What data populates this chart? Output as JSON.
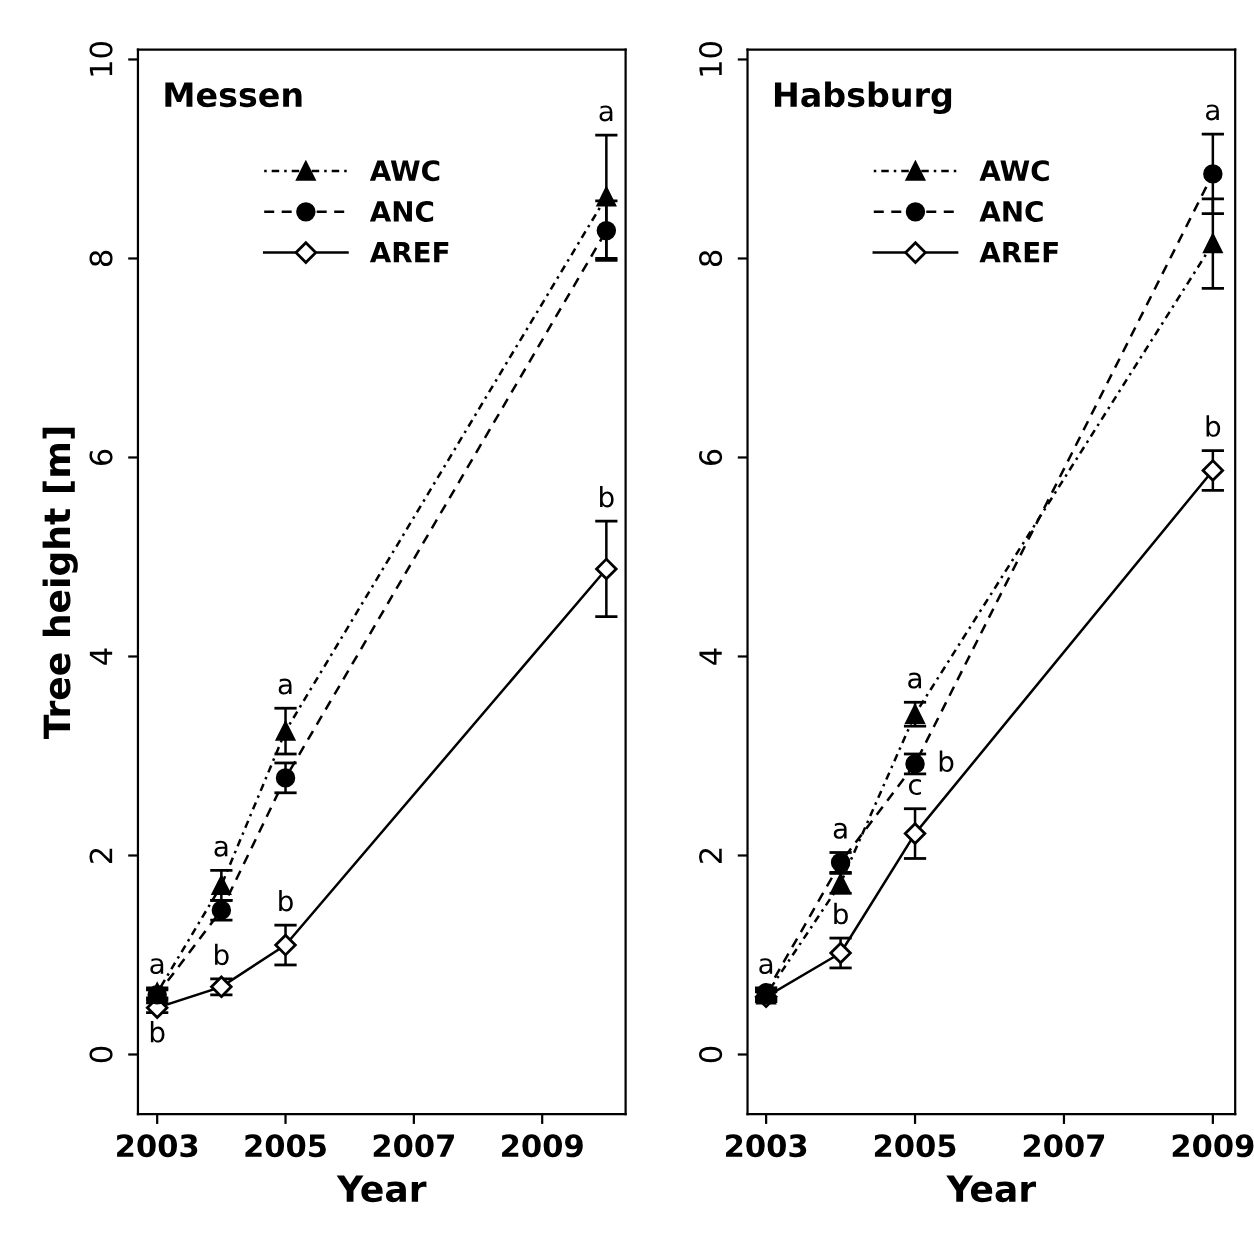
{
  "chart_data": [
    {
      "type": "line",
      "title": "Messen",
      "xlabel": "Year",
      "ylabel": "Tree height [m]",
      "x": [
        2003,
        2004,
        2005,
        2010
      ],
      "xlim": [
        2002.7,
        2010.3
      ],
      "xticks": [
        2003,
        2005,
        2007,
        2009
      ],
      "ylim": [
        -0.6,
        10.1
      ],
      "yticks": [
        0,
        2,
        4,
        6,
        8,
        10
      ],
      "legend": "top",
      "grid": false,
      "series": [
        {
          "name": "AWC",
          "color": "#000000",
          "marker": "triangle",
          "line_style": "dashdot",
          "values": [
            0.62,
            1.7,
            3.25,
            8.62
          ],
          "errors": [
            0.05,
            0.15,
            0.23,
            0.62
          ]
        },
        {
          "name": "ANC",
          "color": "#000000",
          "marker": "circle",
          "line_style": "dashed",
          "values": [
            0.6,
            1.45,
            2.78,
            8.28
          ],
          "errors": [
            0.05,
            0.1,
            0.15,
            0.3
          ]
        },
        {
          "name": "AREF",
          "color": "#000000",
          "marker": "diamond",
          "line_style": "solid",
          "values": [
            0.47,
            0.68,
            1.1,
            4.88
          ],
          "errors": [
            0.05,
            0.08,
            0.2,
            0.48
          ]
        }
      ],
      "annotations": [
        {
          "text": "a",
          "x": 2003,
          "y": 0.62
        },
        {
          "text": "b",
          "x": 2003,
          "y": 0.47
        },
        {
          "text": "a",
          "x": 2004,
          "y": 1.7
        },
        {
          "text": "b",
          "x": 2004,
          "y": 0.68
        },
        {
          "text": "a",
          "x": 2005,
          "y": 3.25
        },
        {
          "text": "b",
          "x": 2005,
          "y": 1.1
        },
        {
          "text": "a",
          "x": 2010,
          "y": 8.62
        },
        {
          "text": "b",
          "x": 2010,
          "y": 4.88
        }
      ]
    },
    {
      "type": "line",
      "title": "Habsburg",
      "xlabel": "Year",
      "x": [
        2003,
        2004,
        2005,
        2009
      ],
      "xlim": [
        2002.75,
        2009.3
      ],
      "xticks": [
        2003,
        2005,
        2007,
        2009
      ],
      "ylim": [
        -0.6,
        10.1
      ],
      "yticks": [
        0,
        2,
        4,
        6,
        8,
        10
      ],
      "legend": "top",
      "grid": false,
      "series": [
        {
          "name": "AWC",
          "color": "#000000",
          "marker": "triangle",
          "line_style": "dashdot",
          "values": [
            0.6,
            1.72,
            3.42,
            8.15
          ],
          "errors": [
            0.05,
            0.1,
            0.12,
            0.45
          ]
        },
        {
          "name": "ANC",
          "color": "#000000",
          "marker": "circle",
          "line_style": "dashed",
          "values": [
            0.62,
            1.93,
            2.92,
            8.85
          ],
          "errors": [
            0.05,
            0.1,
            0.1,
            0.4
          ]
        },
        {
          "name": "AREF",
          "color": "#000000",
          "marker": "diamond",
          "line_style": "solid",
          "values": [
            0.58,
            1.02,
            2.22,
            5.87
          ],
          "errors": [
            0.05,
            0.15,
            0.25,
            0.2
          ]
        }
      ],
      "annotations": [
        {
          "text": "a",
          "x": 2003,
          "y": 0.62
        },
        {
          "text": "a",
          "x": 2004,
          "y": 1.93
        },
        {
          "text": "b",
          "x": 2004,
          "y": 1.02
        },
        {
          "text": "a",
          "x": 2005,
          "y": 3.42
        },
        {
          "text": "b",
          "x": 2005,
          "y": 2.92
        },
        {
          "text": "c",
          "x": 2005,
          "y": 2.22
        },
        {
          "text": "a",
          "x": 2009,
          "y": 8.85
        },
        {
          "text": "b",
          "x": 2009,
          "y": 5.87
        }
      ]
    }
  ]
}
